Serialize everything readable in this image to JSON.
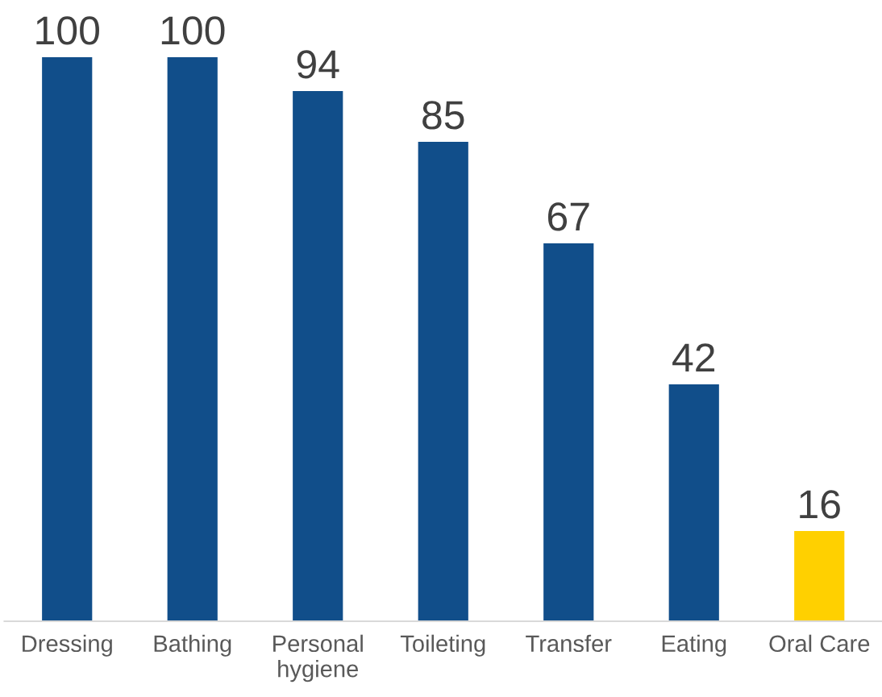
{
  "chart_data": {
    "type": "bar",
    "categories": [
      "Dressing",
      "Bathing",
      "Personal\nhygiene",
      "Toileting",
      "Transfer",
      "Eating",
      "Oral Care"
    ],
    "values": [
      100,
      100,
      94,
      85,
      67,
      42,
      16
    ],
    "colors": [
      "#114e8a",
      "#114e8a",
      "#114e8a",
      "#114e8a",
      "#114e8a",
      "#114e8a",
      "#ffd000"
    ],
    "data_labels": true,
    "grid": false,
    "legend": false
  }
}
